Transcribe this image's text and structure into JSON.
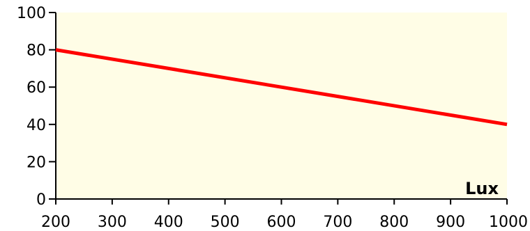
{
  "chart_data": {
    "type": "line",
    "title": "",
    "xlabel": "Lux",
    "ylabel": "",
    "xlim": [
      200,
      1000
    ],
    "ylim": [
      0,
      100
    ],
    "x_ticks": [
      200,
      300,
      400,
      500,
      600,
      700,
      800,
      900,
      1000
    ],
    "y_ticks": [
      0,
      20,
      40,
      60,
      80,
      100
    ],
    "grid": false,
    "legend": "none",
    "series": [
      {
        "x": [
          200,
          1000
        ],
        "y": [
          80,
          40
        ]
      }
    ],
    "colors": {
      "plot_background": "#fffde6",
      "line": "#ff0000",
      "axis": "#000000"
    }
  }
}
